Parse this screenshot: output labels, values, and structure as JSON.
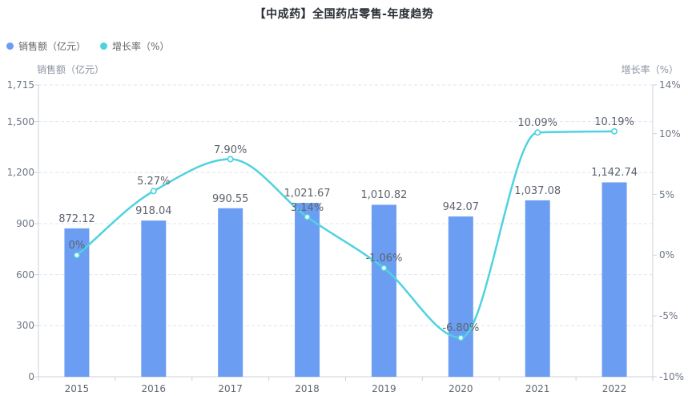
{
  "page": {
    "title": "【中成药】全国药店零售-年度趋势"
  },
  "legend": {
    "items": [
      {
        "label": "销售额（亿元）",
        "color": "#6b9df2"
      },
      {
        "label": "增长率（%）",
        "color": "#4fd2df"
      }
    ]
  },
  "chart_data": {
    "type": "combo bar+line, dual y-axis",
    "title": "【中成药】全国药店零售-年度趋势",
    "categories": [
      "2015",
      "2016",
      "2017",
      "2018",
      "2019",
      "2020",
      "2021",
      "2022"
    ],
    "series": [
      {
        "name": "销售额（亿元）",
        "type": "bar",
        "y_axis": "left",
        "color": "#6b9df2",
        "values": [
          872.12,
          918.04,
          990.55,
          1021.67,
          1010.82,
          942.07,
          1037.08,
          1142.74
        ],
        "data_labels": [
          "872.12",
          "918.04",
          "990.55",
          "1,021.67",
          "1,010.82",
          "942.07",
          "1,037.08",
          "1,142.74"
        ]
      },
      {
        "name": "增长率（%）",
        "type": "line",
        "y_axis": "right",
        "smooth": true,
        "color": "#4fd2df",
        "values": [
          0,
          5.27,
          7.9,
          3.14,
          -1.06,
          -6.8,
          10.09,
          10.19
        ],
        "data_labels": [
          "0%",
          "5.27%",
          "7.90%",
          "3.14%",
          "-1.06%",
          "-6.80%",
          "10.09%",
          "10.19%"
        ]
      }
    ],
    "left_axis": {
      "name": "销售额（亿元）",
      "min": 0,
      "max": 1715,
      "ticks": [
        0,
        300,
        600,
        900,
        1200,
        1500,
        1715
      ],
      "tick_labels": [
        "0",
        "300",
        "600",
        "900",
        "1,200",
        "1,500",
        "1,715"
      ]
    },
    "right_axis": {
      "name": "增长率（%）",
      "min": -10,
      "max": 14,
      "ticks": [
        -10,
        -5,
        0,
        5,
        10,
        14
      ],
      "tick_labels": [
        "-10%",
        "-5%",
        "0%",
        "5%",
        "10%",
        "14%"
      ]
    },
    "grid": {
      "horizontal_dashed_lines": true,
      "legend_position": "top-left"
    }
  },
  "colors": {
    "bar": "#6b9df2",
    "line": "#4fd2df",
    "marker_fill": "#ffffff",
    "grid_line": "#dfe4f0",
    "axis_line": "#ccd2de",
    "y_tick_label": "#6e7686",
    "x_tick_label": "#5f6673",
    "data_label": "#5d636e",
    "title": "#2b2f36",
    "legend_text": "#666666",
    "background": "#ffffff"
  }
}
